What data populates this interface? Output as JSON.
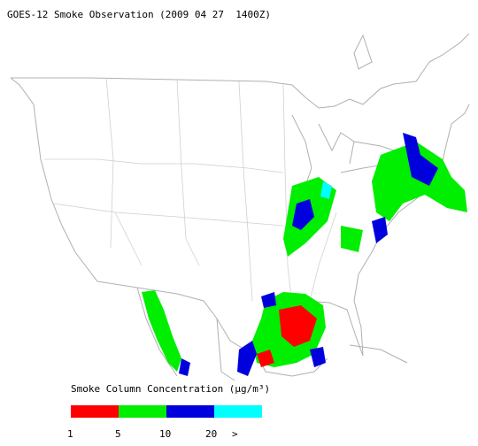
{
  "title": "GOES-12 Smoke Observation (2009 04 27  1400Z)",
  "legend": {
    "title": "Smoke Column Concentration (μg/m³)",
    "colors": [
      "#ff0000",
      "#00ee00",
      "#0000dd",
      "#00ffff"
    ],
    "labels": [
      "1",
      "5",
      "10",
      "20",
      ">"
    ]
  }
}
